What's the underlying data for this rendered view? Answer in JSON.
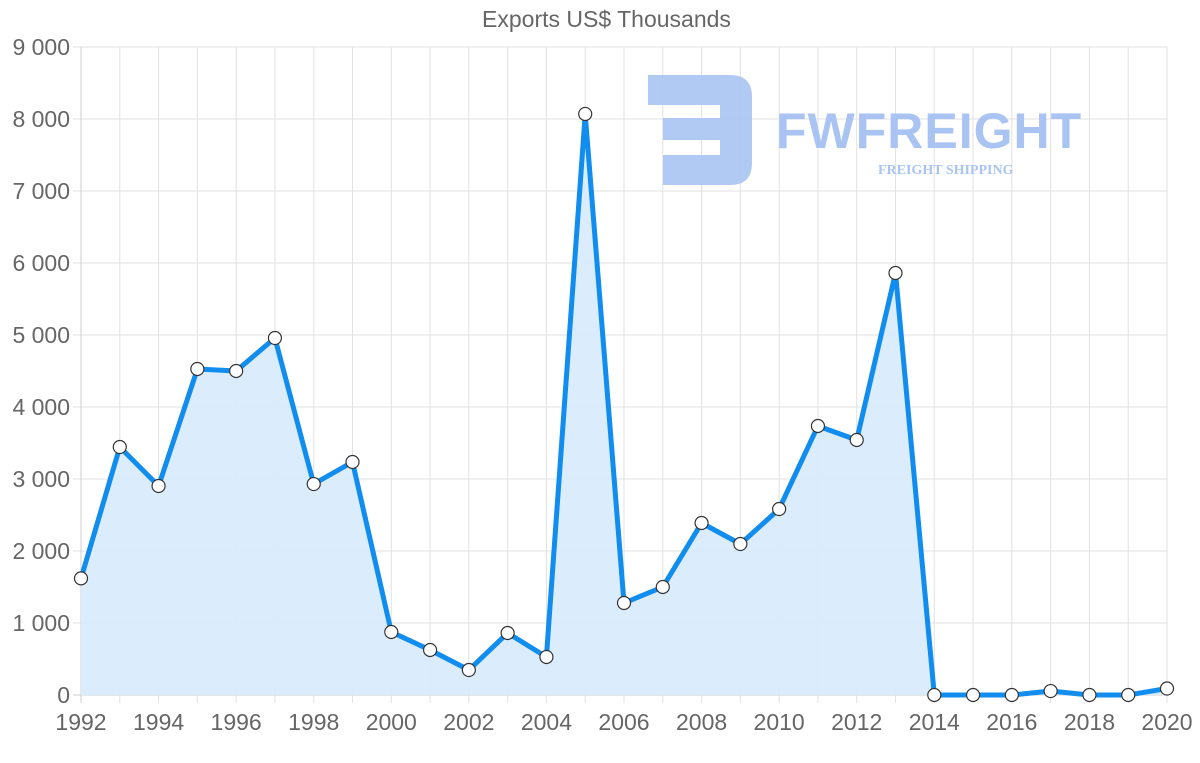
{
  "chart_data": {
    "type": "line",
    "title": "Exports US$ Thousands",
    "xlabel": "",
    "ylabel": "",
    "x": [
      1992,
      1993,
      1994,
      1995,
      1996,
      1997,
      1998,
      1999,
      2000,
      2001,
      2002,
      2003,
      2004,
      2005,
      2006,
      2007,
      2008,
      2009,
      2010,
      2011,
      2012,
      2013,
      2014,
      2015,
      2016,
      2017,
      2018,
      2019,
      2020
    ],
    "series": [
      {
        "name": "Exports US$ Thousands",
        "values": [
          1620,
          3444,
          2903,
          4528,
          4500,
          4958,
          2930,
          3236,
          875,
          625,
          347,
          861,
          528,
          8070,
          1278,
          1500,
          2389,
          2097,
          2583,
          3736,
          3542,
          5861,
          0,
          0,
          0,
          55,
          0,
          0,
          90
        ],
        "color": "#118def",
        "fill": "#d9ecfc"
      }
    ],
    "ylim": [
      0,
      9000
    ],
    "y_ticks": [
      "0",
      "1 000",
      "2 000",
      "3 000",
      "4 000",
      "5 000",
      "6 000",
      "7 000",
      "8 000",
      "9 000"
    ],
    "x_ticks": [
      "1992",
      "1994",
      "1996",
      "1998",
      "2000",
      "2002",
      "2004",
      "2006",
      "2008",
      "2010",
      "2012",
      "2014",
      "2016",
      "2018",
      "2020"
    ],
    "grid": true,
    "legend": "none",
    "fill_area": true
  },
  "watermark": {
    "brand": "FWFREIGHT",
    "tagline": "FREIGHT SHIPPING"
  }
}
